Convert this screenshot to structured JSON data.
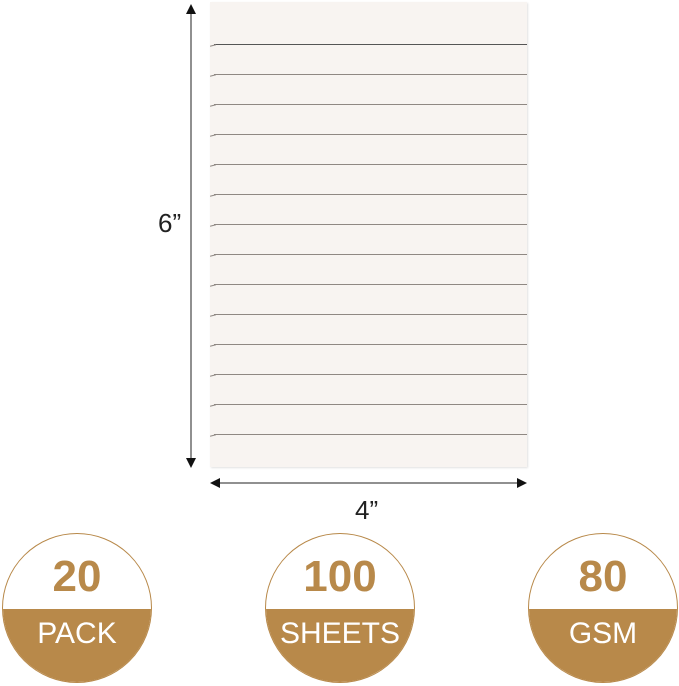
{
  "dimensions": {
    "height": "6”",
    "width": "4”"
  },
  "badges": [
    {
      "number": "20",
      "label": "PACK"
    },
    {
      "number": "100",
      "label": "SHEETS"
    },
    {
      "number": "80",
      "label": "GSM"
    }
  ],
  "colors": {
    "accent": "#b8894a",
    "paper": "#f8f4f1"
  },
  "ruled_lines": 14
}
